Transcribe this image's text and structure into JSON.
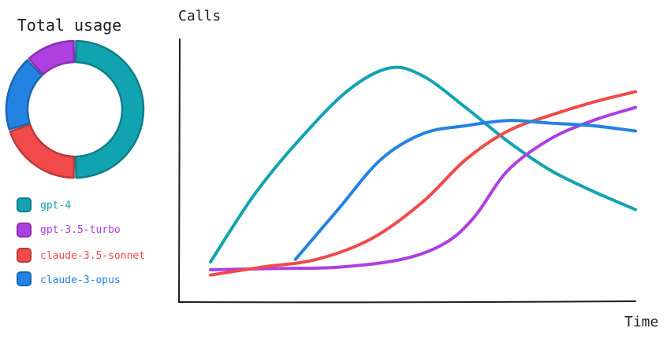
{
  "chart_data": [
    {
      "type": "pie",
      "title": "Total usage",
      "series": [
        {
          "name": "gpt-4",
          "value": 50,
          "color": "#12a3b0"
        },
        {
          "name": "claude-3.5-sonnet",
          "value": 20,
          "color": "#f04a4a"
        },
        {
          "name": "claude-3-opus",
          "value": 18,
          "color": "#2383e2"
        },
        {
          "name": "gpt-3.5-turbo",
          "value": 12,
          "color": "#ae3fe0"
        }
      ]
    },
    {
      "type": "line",
      "ylabel": "Calls",
      "xlabel": "Time",
      "xlim": [
        0,
        100
      ],
      "ylim": [
        0,
        100
      ],
      "grid": false,
      "series": [
        {
          "name": "gpt-4",
          "color": "#12a3b0",
          "x": [
            0,
            10,
            20,
            32,
            42,
            50,
            60,
            70,
            80,
            90,
            100
          ],
          "y": [
            15,
            40,
            60,
            80,
            89,
            86,
            74,
            61,
            50,
            42,
            35
          ]
        },
        {
          "name": "gpt-3.5-turbo",
          "color": "#ae3fe0",
          "x": [
            0,
            15,
            30,
            45,
            55,
            62,
            70,
            80,
            90,
            100
          ],
          "y": [
            12,
            12.5,
            13,
            16,
            22,
            32,
            50,
            62,
            69,
            74
          ]
        },
        {
          "name": "claude-3.5-sonnet",
          "color": "#f04a4a",
          "x": [
            0,
            12,
            25,
            38,
            50,
            60,
            70,
            80,
            90,
            100
          ],
          "y": [
            10,
            13,
            16,
            24,
            38,
            54,
            65,
            71,
            76,
            80
          ]
        },
        {
          "name": "claude-3-opus",
          "color": "#2383e2",
          "x": [
            20,
            30,
            40,
            50,
            60,
            70,
            80,
            90,
            100
          ],
          "y": [
            16,
            35,
            54,
            64,
            67,
            69,
            68,
            67,
            65
          ]
        }
      ]
    }
  ]
}
